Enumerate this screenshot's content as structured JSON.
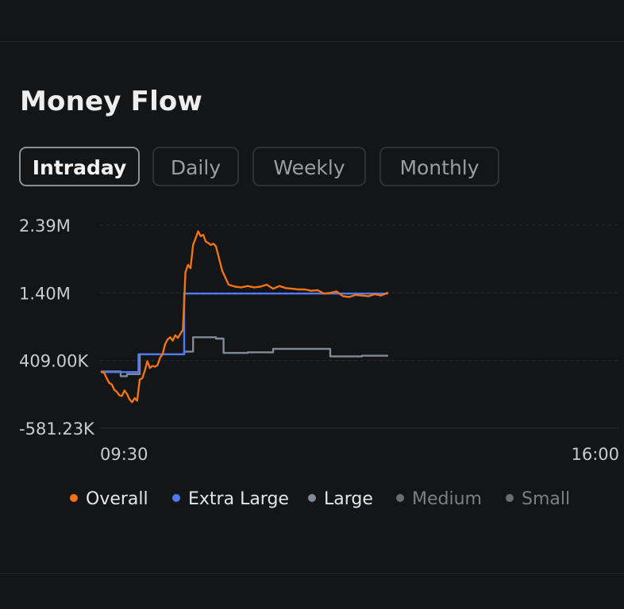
{
  "title": "Money Flow",
  "tabs": [
    {
      "label": "Intraday",
      "active": true
    },
    {
      "label": "Daily",
      "active": false
    },
    {
      "label": "Weekly",
      "active": false
    },
    {
      "label": "Monthly",
      "active": false
    }
  ],
  "legend": [
    {
      "label": "Overall",
      "color": "#f07316",
      "active": true
    },
    {
      "label": "Extra Large",
      "color": "#4d7bf3",
      "active": true
    },
    {
      "label": "Large",
      "color": "#7f8b9b",
      "active": true
    },
    {
      "label": "Medium",
      "color": "#6b6d71",
      "active": false
    },
    {
      "label": "Small",
      "color": "#6b6d71",
      "active": false
    }
  ],
  "chart_data": {
    "type": "line",
    "xlabel": "",
    "ylabel": "",
    "x_ticks": [
      "09:30",
      "16:00"
    ],
    "y_ticks": [
      "2.39M",
      "1.40M",
      "409.00K",
      "-581.23K"
    ],
    "y_tick_values": [
      2390000,
      1400000,
      409000,
      -581230
    ],
    "ylim": [
      -581230,
      2390000
    ],
    "grid": "horizontal-dashed",
    "legend_position": "bottom",
    "x_domain": [
      "09:30",
      "16:00"
    ],
    "series": [
      {
        "name": "Overall",
        "color": "#f07316",
        "x": [
          "09:30",
          "09:32",
          "09:34",
          "09:36",
          "09:38",
          "09:40",
          "09:42",
          "09:44",
          "09:46",
          "09:48",
          "09:50",
          "09:52",
          "09:54",
          "09:56",
          "09:58",
          "10:00",
          "10:02",
          "10:04",
          "10:06",
          "10:08",
          "10:10",
          "10:12",
          "10:14",
          "10:16",
          "10:18",
          "10:20",
          "10:22",
          "10:24",
          "10:26",
          "10:28",
          "10:30",
          "10:32",
          "10:34",
          "10:36",
          "10:38",
          "10:40",
          "10:42",
          "10:44",
          "10:46",
          "10:48",
          "10:50",
          "10:52",
          "10:54",
          "10:56",
          "10:58",
          "11:00",
          "11:05",
          "11:10",
          "11:15",
          "11:20",
          "11:25",
          "11:30",
          "11:35",
          "11:40",
          "11:45",
          "11:50",
          "11:55",
          "12:00",
          "12:05",
          "12:10",
          "12:15",
          "12:20",
          "12:25",
          "12:30",
          "12:35",
          "12:40",
          "12:45",
          "12:50",
          "12:55",
          "13:00",
          "13:05",
          "13:10",
          "13:15"
        ],
        "values": [
          240000,
          230000,
          150000,
          80000,
          60000,
          -20000,
          -50000,
          -100000,
          -110000,
          -30000,
          -80000,
          -160000,
          -200000,
          -140000,
          -180000,
          130000,
          150000,
          260000,
          400000,
          300000,
          330000,
          320000,
          340000,
          450000,
          500000,
          650000,
          720000,
          750000,
          700000,
          780000,
          740000,
          800000,
          860000,
          1700000,
          1810000,
          1760000,
          2100000,
          2200000,
          2300000,
          2230000,
          2250000,
          2150000,
          2130000,
          2100000,
          2120000,
          2080000,
          1720000,
          1520000,
          1490000,
          1480000,
          1500000,
          1480000,
          1490000,
          1520000,
          1460000,
          1500000,
          1470000,
          1460000,
          1450000,
          1450000,
          1430000,
          1440000,
          1390000,
          1400000,
          1420000,
          1350000,
          1340000,
          1370000,
          1360000,
          1350000,
          1380000,
          1360000,
          1400000
        ]
      },
      {
        "name": "Extra Large",
        "color": "#4d7bf3",
        "x": [
          "09:30",
          "09:59",
          "09:59",
          "10:35",
          "10:35",
          "13:15"
        ],
        "values": [
          240000,
          240000,
          500000,
          500000,
          1390000,
          1390000
        ]
      },
      {
        "name": "Large",
        "color": "#7f8b9b",
        "x": [
          "09:30",
          "09:45",
          "09:45",
          "09:50",
          "09:50",
          "10:00",
          "10:00",
          "10:35",
          "10:35",
          "10:42",
          "10:42",
          "11:00",
          "11:00",
          "11:06",
          "11:06",
          "11:25",
          "11:25",
          "11:45",
          "11:45",
          "12:30",
          "12:30",
          "12:55",
          "12:55",
          "13:15"
        ],
        "values": [
          250000,
          250000,
          180000,
          180000,
          210000,
          210000,
          500000,
          500000,
          540000,
          540000,
          750000,
          750000,
          730000,
          730000,
          520000,
          520000,
          530000,
          530000,
          580000,
          580000,
          470000,
          470000,
          480000,
          480000
        ]
      }
    ]
  }
}
